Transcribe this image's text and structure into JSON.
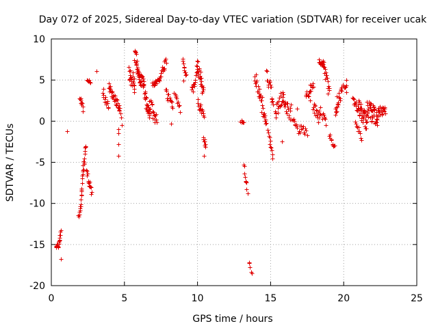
{
  "chart_data": {
    "type": "scatter",
    "title": "Day 072 of 2025, Sidereal Day-to-day VTEC variation (SDTVAR) for receiver ucak",
    "xlabel": "GPS time / hours",
    "ylabel": "SDTVAR / TECUs",
    "xlim": [
      0,
      25
    ],
    "ylim": [
      -20,
      10
    ],
    "xticks": [
      0,
      5,
      10,
      15,
      20,
      25
    ],
    "yticks": [
      -20,
      -15,
      -10,
      -5,
      0,
      5,
      10
    ],
    "grid": true,
    "marker": "+",
    "color": "#e00000",
    "series": [
      {
        "name": "ucak",
        "segments": [
          {
            "t0": 0.3,
            "t1": 0.45,
            "v0": -15.0,
            "v1": -15.2,
            "n": 8,
            "jitter": 0.3
          },
          {
            "t0": 0.45,
            "t1": 0.65,
            "v0": -15.5,
            "v1": -13.0,
            "n": 12,
            "jitter": 0.4
          },
          {
            "t0": 1.85,
            "t1": 2.0,
            "v0": -11.5,
            "v1": -10.3,
            "n": 8,
            "jitter": 0.4
          },
          {
            "t0": 2.0,
            "t1": 2.15,
            "v0": -10.0,
            "v1": -6.0,
            "n": 12,
            "jitter": 0.5
          },
          {
            "t0": 2.15,
            "t1": 2.35,
            "v0": -6.0,
            "v1": -3.0,
            "n": 12,
            "jitter": 0.5
          },
          {
            "t0": 1.95,
            "t1": 2.15,
            "v0": 3.0,
            "v1": 1.5,
            "n": 10,
            "jitter": 0.5
          },
          {
            "t0": 2.4,
            "t1": 2.75,
            "v0": -6.0,
            "v1": -9.0,
            "n": 14,
            "jitter": 0.5
          },
          {
            "t0": 2.45,
            "t1": 2.65,
            "v0": 5.0,
            "v1": 4.8,
            "n": 6,
            "jitter": 0.15
          },
          {
            "t0": 3.5,
            "t1": 3.9,
            "v0": 3.8,
            "v1": 1.5,
            "n": 14,
            "jitter": 0.5
          },
          {
            "t0": 3.9,
            "t1": 4.4,
            "v0": 4.5,
            "v1": 2.5,
            "n": 18,
            "jitter": 0.6
          },
          {
            "t0": 4.4,
            "t1": 4.8,
            "v0": 2.5,
            "v1": 0.8,
            "n": 14,
            "jitter": 0.5
          },
          {
            "t0": 5.3,
            "t1": 5.7,
            "v0": 6.0,
            "v1": 4.5,
            "n": 22,
            "jitter": 1.0
          },
          {
            "t0": 5.7,
            "t1": 6.0,
            "v0": 8.2,
            "v1": 5.5,
            "n": 26,
            "jitter": 1.0
          },
          {
            "t0": 6.0,
            "t1": 6.35,
            "v0": 5.5,
            "v1": 4.0,
            "n": 24,
            "jitter": 1.0
          },
          {
            "t0": 6.35,
            "t1": 6.7,
            "v0": 3.0,
            "v1": 0.5,
            "n": 20,
            "jitter": 0.9
          },
          {
            "t0": 6.7,
            "t1": 7.2,
            "v0": 2.0,
            "v1": 0.0,
            "n": 20,
            "jitter": 0.9
          },
          {
            "t0": 6.9,
            "t1": 7.4,
            "v0": 4.5,
            "v1": 5.0,
            "n": 16,
            "jitter": 0.3
          },
          {
            "t0": 7.4,
            "t1": 7.85,
            "v0": 5.5,
            "v1": 7.3,
            "n": 16,
            "jitter": 0.4
          },
          {
            "t0": 7.8,
            "t1": 8.3,
            "v0": 3.5,
            "v1": 2.0,
            "n": 14,
            "jitter": 0.5
          },
          {
            "t0": 8.4,
            "t1": 8.8,
            "v0": 3.5,
            "v1": 1.5,
            "n": 10,
            "jitter": 0.4
          },
          {
            "t0": 9.0,
            "t1": 9.2,
            "v0": 7.5,
            "v1": 5.5,
            "n": 10,
            "jitter": 0.4
          },
          {
            "t0": 9.6,
            "t1": 9.95,
            "v0": 3.5,
            "v1": 5.5,
            "n": 14,
            "jitter": 0.6
          },
          {
            "t0": 9.95,
            "t1": 10.4,
            "v0": 7.0,
            "v1": 3.5,
            "n": 26,
            "jitter": 0.9
          },
          {
            "t0": 10.0,
            "t1": 10.45,
            "v0": 2.5,
            "v1": 0.5,
            "n": 14,
            "jitter": 0.6
          },
          {
            "t0": 10.4,
            "t1": 10.55,
            "v0": -2.0,
            "v1": -3.0,
            "n": 8,
            "jitter": 0.3
          },
          {
            "t0": 12.95,
            "t1": 13.15,
            "v0": 0.1,
            "v1": -0.1,
            "n": 6,
            "jitter": 0.2
          },
          {
            "t0": 13.15,
            "t1": 13.45,
            "v0": -5.5,
            "v1": -9.0,
            "n": 10,
            "jitter": 0.4
          },
          {
            "t0": 13.5,
            "t1": 13.7,
            "v0": -17.0,
            "v1": -18.5,
            "n": 5,
            "jitter": 0.3
          },
          {
            "t0": 13.9,
            "t1": 14.4,
            "v0": 5.5,
            "v1": 2.0,
            "n": 20,
            "jitter": 0.9
          },
          {
            "t0": 14.4,
            "t1": 14.7,
            "v0": 1.5,
            "v1": 0.0,
            "n": 12,
            "jitter": 0.6
          },
          {
            "t0": 14.7,
            "t1": 15.15,
            "v0": 5.5,
            "v1": 2.5,
            "n": 18,
            "jitter": 0.9
          },
          {
            "t0": 14.8,
            "t1": 15.15,
            "v0": -1.5,
            "v1": -4.5,
            "n": 10,
            "jitter": 0.5
          },
          {
            "t0": 15.3,
            "t1": 15.8,
            "v0": 1.0,
            "v1": 3.0,
            "n": 18,
            "jitter": 0.8
          },
          {
            "t0": 15.8,
            "t1": 16.4,
            "v0": 3.0,
            "v1": 0.5,
            "n": 20,
            "jitter": 0.9
          },
          {
            "t0": 16.5,
            "t1": 17.0,
            "v0": 0.0,
            "v1": -1.5,
            "n": 12,
            "jitter": 0.5
          },
          {
            "t0": 17.0,
            "t1": 17.5,
            "v0": -0.5,
            "v1": -1.5,
            "n": 10,
            "jitter": 0.5
          },
          {
            "t0": 17.4,
            "t1": 17.9,
            "v0": 3.0,
            "v1": 4.5,
            "n": 16,
            "jitter": 0.6
          },
          {
            "t0": 17.9,
            "t1": 18.3,
            "v0": 2.0,
            "v1": 0.0,
            "n": 14,
            "jitter": 0.7
          },
          {
            "t0": 18.3,
            "t1": 18.6,
            "v0": 7.3,
            "v1": 7.0,
            "n": 16,
            "jitter": 0.3
          },
          {
            "t0": 18.6,
            "t1": 19.0,
            "v0": 7.0,
            "v1": 3.5,
            "n": 18,
            "jitter": 0.6
          },
          {
            "t0": 18.3,
            "t1": 18.8,
            "v0": 1.5,
            "v1": 0.0,
            "n": 12,
            "jitter": 0.6
          },
          {
            "t0": 19.0,
            "t1": 19.4,
            "v0": -1.8,
            "v1": -3.0,
            "n": 10,
            "jitter": 0.3
          },
          {
            "t0": 19.4,
            "t1": 19.8,
            "v0": 1.0,
            "v1": 3.5,
            "n": 16,
            "jitter": 0.7
          },
          {
            "t0": 19.8,
            "t1": 20.2,
            "v0": 3.5,
            "v1": 4.8,
            "n": 12,
            "jitter": 0.5
          },
          {
            "t0": 20.6,
            "t1": 21.0,
            "v0": 2.5,
            "v1": 1.5,
            "n": 12,
            "jitter": 0.5
          },
          {
            "t0": 20.8,
            "t1": 21.2,
            "v0": 0.0,
            "v1": -2.0,
            "n": 10,
            "jitter": 0.4
          },
          {
            "t0": 21.0,
            "t1": 21.6,
            "v0": 1.5,
            "v1": 0.0,
            "n": 40,
            "jitter": 1.1
          },
          {
            "t0": 21.6,
            "t1": 22.3,
            "v0": 1.5,
            "v1": 0.5,
            "n": 40,
            "jitter": 1.1
          },
          {
            "t0": 22.3,
            "t1": 22.85,
            "v0": 1.0,
            "v1": 1.5,
            "n": 22,
            "jitter": 0.6
          }
        ],
        "isolated": [
          [
            0.65,
            -16.8
          ],
          [
            1.1,
            -1.2
          ],
          [
            3.1,
            6.1
          ],
          [
            4.6,
            -1.0
          ],
          [
            4.6,
            -1.5
          ],
          [
            4.6,
            -2.8
          ],
          [
            4.6,
            -4.2
          ],
          [
            4.8,
            -0.5
          ],
          [
            8.2,
            -0.3
          ],
          [
            9.05,
            4.9
          ],
          [
            10.45,
            -4.2
          ],
          [
            14.95,
            -2.0
          ],
          [
            16.4,
            2.0
          ],
          [
            16.8,
            1.5
          ],
          [
            15.8,
            -2.5
          ],
          [
            17.7,
            2.5
          ],
          [
            19.5,
            3.0
          ],
          [
            20.2,
            3.5
          ]
        ]
      }
    ]
  }
}
